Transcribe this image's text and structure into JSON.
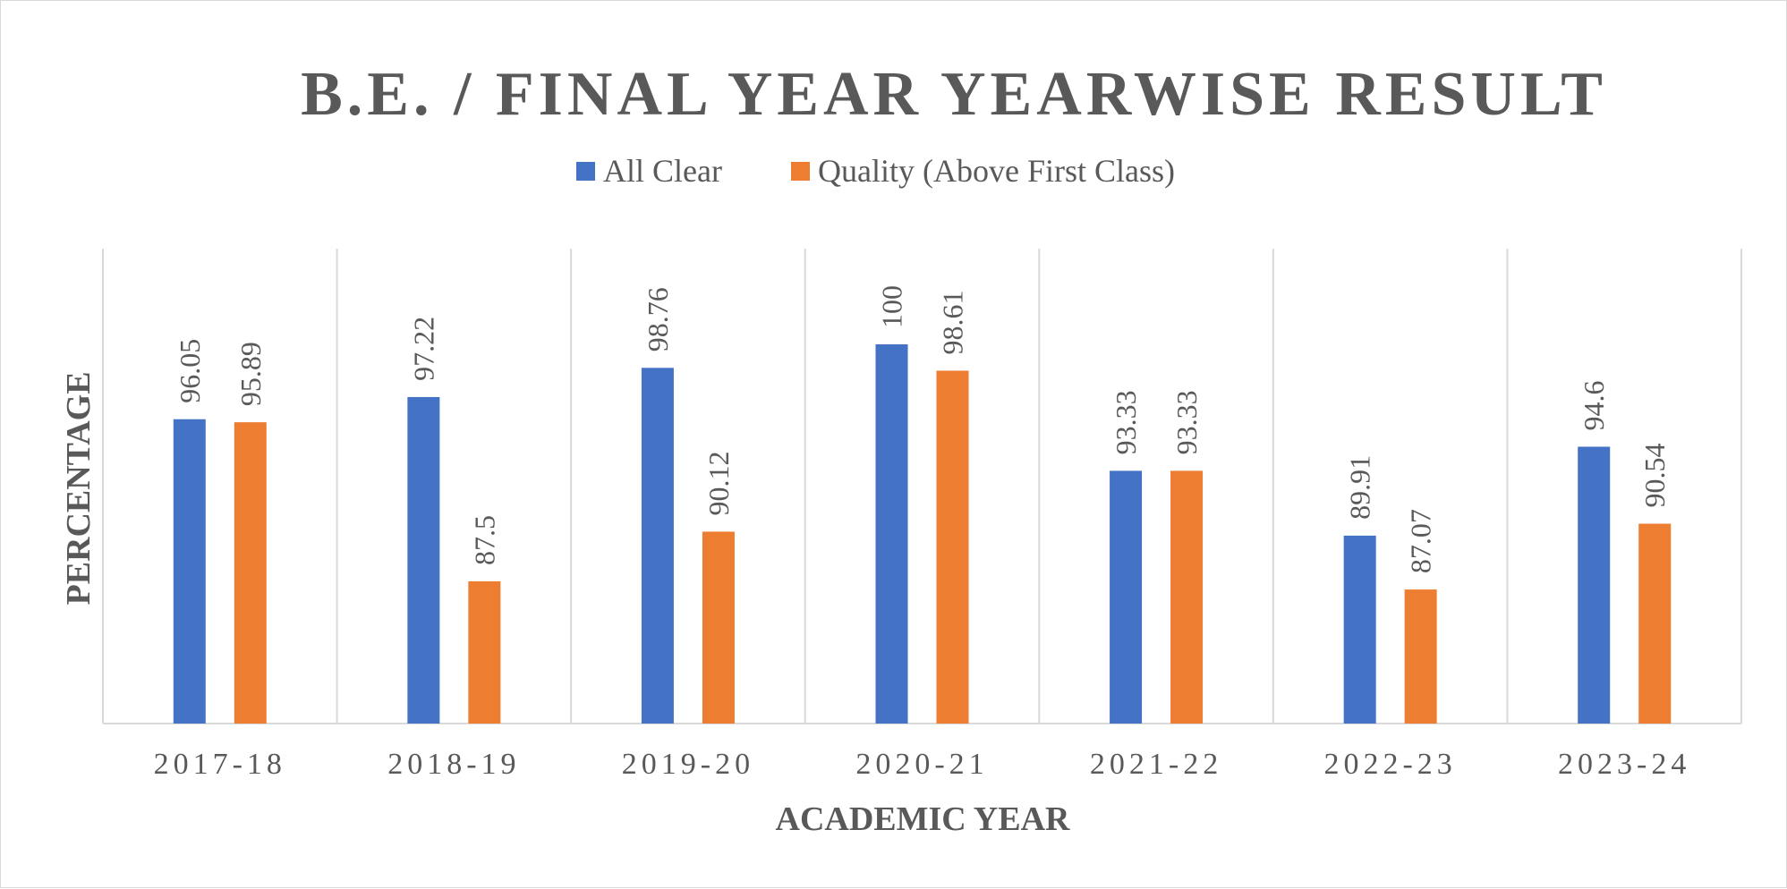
{
  "chart_data": {
    "type": "bar",
    "title": "B.E. / FINAL YEAR YEARWISE RESULT",
    "xlabel": "ACADEMIC YEAR",
    "ylabel": "PERCENTAGE",
    "categories": [
      "2017-18",
      "2018-19",
      "2019-20",
      "2020-21",
      "2021-22",
      "2022-23",
      "2023-24"
    ],
    "series": [
      {
        "name": "All Clear",
        "color": "#4472c4",
        "values": [
          96.05,
          97.22,
          98.76,
          100,
          93.33,
          89.91,
          94.6
        ]
      },
      {
        "name": "Quality (Above First Class)",
        "color": "#ed7d31",
        "values": [
          95.89,
          87.5,
          90.12,
          98.61,
          93.33,
          87.07,
          90.54
        ]
      }
    ],
    "ylim": [
      80,
      100
    ],
    "grid": "vertical category separators",
    "legend": "top-center",
    "data_labels": true
  }
}
